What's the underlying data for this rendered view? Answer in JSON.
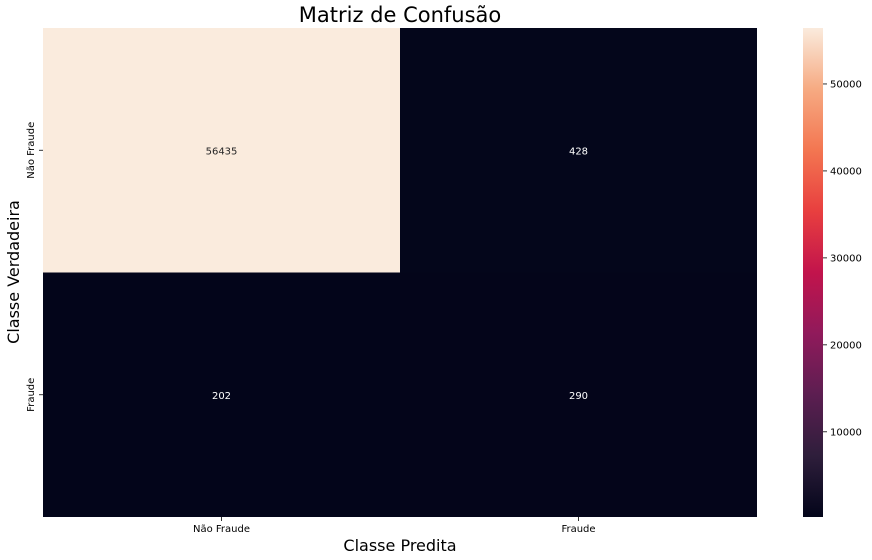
{
  "chart_data": {
    "type": "heatmap",
    "title": "Matriz de Confusão",
    "xlabel": "Classe Predita",
    "ylabel": "Classe Verdadeira",
    "x_categories": [
      "Não Fraude",
      "Fraude"
    ],
    "y_categories": [
      "Não Fraude",
      "Fraude"
    ],
    "values": [
      [
        56435,
        428
      ],
      [
        202,
        290
      ]
    ],
    "colormap": "rocket",
    "colorbar": {
      "min": 202,
      "max": 56435,
      "ticks": [
        10000,
        20000,
        30000,
        40000,
        50000
      ],
      "tick_labels": [
        "10000",
        "20000",
        "30000",
        "40000",
        "50000"
      ]
    },
    "grid": false
  }
}
